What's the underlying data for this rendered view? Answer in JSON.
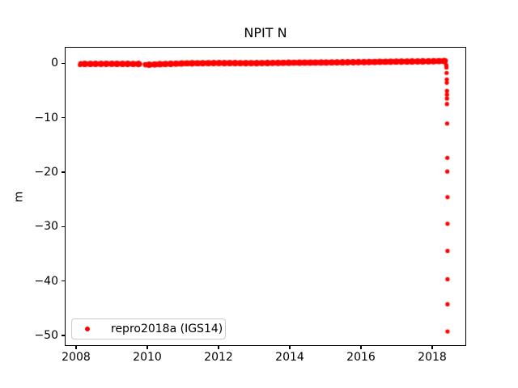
{
  "title": "NPIT N",
  "y_axis_label": "m",
  "legend": {
    "label": "repro2018a (IGS14)",
    "marker_color": "#ff0000"
  },
  "colors": {
    "points": "#ff0000",
    "axis": "#000000",
    "background": "#ffffff",
    "legend_border": "#cccccc"
  },
  "chart_data": {
    "type": "scatter",
    "title": "NPIT N",
    "xlabel": "",
    "ylabel": "m",
    "xlim": [
      2007.68,
      2018.95
    ],
    "ylim": [
      -51.8,
      3.1
    ],
    "grid": false,
    "legend_position": "lower left",
    "xticks": [
      {
        "value": 2008,
        "label": "2008"
      },
      {
        "value": 2010,
        "label": "2010"
      },
      {
        "value": 2012,
        "label": "2012"
      },
      {
        "value": 2014,
        "label": "2014"
      },
      {
        "value": 2016,
        "label": "2016"
      },
      {
        "value": 2018,
        "label": "2018"
      }
    ],
    "yticks": [
      {
        "value": 0,
        "label": "0"
      },
      {
        "value": -10,
        "label": "−10"
      },
      {
        "value": -20,
        "label": "−20"
      },
      {
        "value": -30,
        "label": "−30"
      },
      {
        "value": -40,
        "label": "−40"
      },
      {
        "value": -50,
        "label": "−50"
      }
    ],
    "series": [
      {
        "name": "repro2018a (IGS14)",
        "color": "#ff0000",
        "marker": "dot",
        "marker_radius_px": 2.6,
        "band": {
          "x_start": 2008.11,
          "x_end": 2018.39,
          "gaps": [
            [
              2009.8,
              2009.93
            ]
          ],
          "trend_points": [
            [
              2008.11,
              -0.05
            ],
            [
              2009.0,
              -0.02
            ],
            [
              2009.8,
              -0.05
            ],
            [
              2009.93,
              -0.22
            ],
            [
              2010.3,
              -0.1
            ],
            [
              2011.0,
              0.05
            ],
            [
              2012.0,
              0.12
            ],
            [
              2013.0,
              0.1
            ],
            [
              2014.0,
              0.18
            ],
            [
              2015.0,
              0.22
            ],
            [
              2016.0,
              0.3
            ],
            [
              2017.0,
              0.38
            ],
            [
              2018.0,
              0.45
            ],
            [
              2018.39,
              0.5
            ]
          ],
          "scatter_halfwidth_m": 0.22
        },
        "drop_points": [
          [
            2018.395,
            -0.25
          ],
          [
            2018.4,
            -0.7
          ],
          [
            2018.405,
            -1.7
          ],
          [
            2018.41,
            -2.9
          ],
          [
            2018.41,
            -3.5
          ],
          [
            2018.415,
            -5.0
          ],
          [
            2018.415,
            -5.7
          ],
          [
            2018.415,
            -6.4
          ],
          [
            2018.415,
            -7.4
          ],
          [
            2018.42,
            -11.0
          ],
          [
            2018.425,
            -17.3
          ],
          [
            2018.425,
            -19.8
          ],
          [
            2018.43,
            -24.5
          ],
          [
            2018.43,
            -29.4
          ],
          [
            2018.43,
            -34.4
          ],
          [
            2018.43,
            -39.6
          ],
          [
            2018.43,
            -44.2
          ],
          [
            2018.43,
            -49.2
          ]
        ]
      }
    ]
  }
}
